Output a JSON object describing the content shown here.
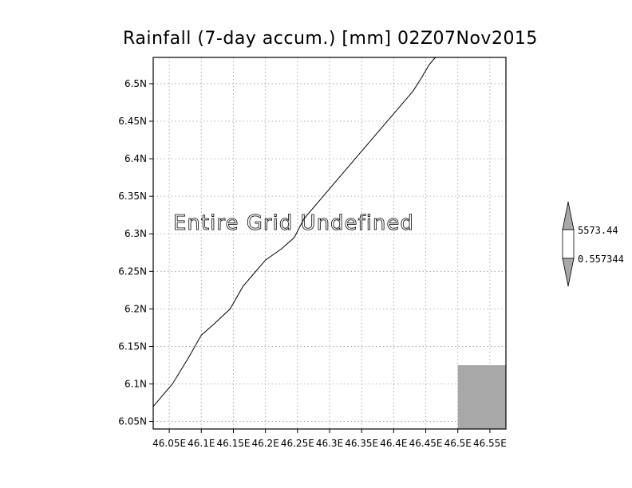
{
  "title": "Rainfall (7-day accum.) [mm] 02Z07Nov2015",
  "message": "Entire Grid Undefined",
  "map": {
    "lon_range": [
      46.025,
      46.575
    ],
    "lat_range": [
      6.04,
      6.535
    ],
    "x_ticks": [
      "46.05E",
      "46.1E",
      "46.15E",
      "46.2E",
      "46.25E",
      "46.3E",
      "46.35E",
      "46.4E",
      "46.45E",
      "46.5E",
      "46.55E"
    ],
    "x_tick_values": [
      46.05,
      46.1,
      46.15,
      46.2,
      46.25,
      46.3,
      46.35,
      46.4,
      46.45,
      46.5,
      46.55
    ],
    "y_ticks": [
      "6.05N",
      "6.1N",
      "6.15N",
      "6.2N",
      "6.25N",
      "6.3N",
      "6.35N",
      "6.4N",
      "6.45N",
      "6.5N"
    ],
    "y_tick_values": [
      6.05,
      6.1,
      6.15,
      6.2,
      6.25,
      6.3,
      6.35,
      6.4,
      6.45,
      6.5
    ],
    "coastline": [
      [
        46.025,
        6.07
      ],
      [
        46.055,
        6.1
      ],
      [
        46.08,
        6.135
      ],
      [
        46.1,
        6.165
      ],
      [
        46.12,
        6.18
      ],
      [
        46.145,
        6.2
      ],
      [
        46.165,
        6.23
      ],
      [
        46.18,
        6.245
      ],
      [
        46.2,
        6.265
      ],
      [
        46.225,
        6.28
      ],
      [
        46.245,
        6.295
      ],
      [
        46.26,
        6.32
      ],
      [
        46.285,
        6.345
      ],
      [
        46.31,
        6.37
      ],
      [
        46.34,
        6.4
      ],
      [
        46.37,
        6.43
      ],
      [
        46.4,
        6.46
      ],
      [
        46.43,
        6.49
      ],
      [
        46.445,
        6.51
      ],
      [
        46.455,
        6.525
      ],
      [
        46.465,
        6.535
      ]
    ],
    "gray_box": {
      "lon": [
        46.5,
        46.575
      ],
      "lat": [
        6.04,
        6.125
      ]
    },
    "grid": true,
    "land_color": "#a8a8a8"
  },
  "legend": {
    "labels": [
      "5573.44",
      "0.557344"
    ],
    "colors": [
      "#a8a8a8",
      "#ffffff",
      "#a8a8a8"
    ]
  }
}
